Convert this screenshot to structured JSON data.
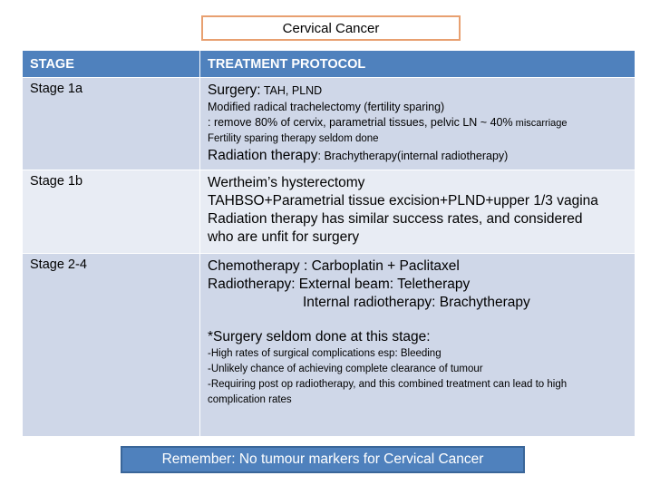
{
  "title": "Cervical Cancer",
  "headers": {
    "stage": "STAGE",
    "protocol": "TREATMENT PROTOCOL"
  },
  "rows": [
    {
      "stage": "Stage 1a",
      "surgery_label": "Surgery:",
      "surgery_text": " TAH, PLND",
      "line2": " Modified radical trachelectomy (fertility sparing)",
      "line3": ": remove 80% of cervix, parametrial tissues, pelvic LN ~ 40%",
      "line3_small": " miscarriage",
      "line4": "Fertility sparing therapy seldom done",
      "radiation_label": "Radiation therapy",
      "radiation_text": ": Brachytherapy(internal radiotherapy)"
    },
    {
      "stage": "Stage 1b",
      "line1": "Wertheim’s hysterectomy",
      "line2": "TAHBSO+Parametrial tissue excision+PLND+upper 1/3 vagina",
      "line3": "Radiation therapy has similar success rates, and considered",
      "line4": "who are unfit for surgery"
    },
    {
      "stage": "Stage 2-4",
      "line1": "Chemotherapy : Carboplatin + Paclitaxel",
      "line2": "Radiotherapy: External beam: Teletherapy",
      "line3": "Internal radiotherapy: Brachytherapy",
      "line4": "*Surgery seldom done at this stage:",
      "bullets": [
        "-High rates of surgical complications esp: Bleeding",
        "-Unlikely chance of achieving complete clearance of tumour",
        "-Requiring post op radiotherapy, and this combined treatment can lead to high",
        "complication rates"
      ]
    }
  ],
  "footer": "Remember: No tumour markers for Cervical Cancer"
}
